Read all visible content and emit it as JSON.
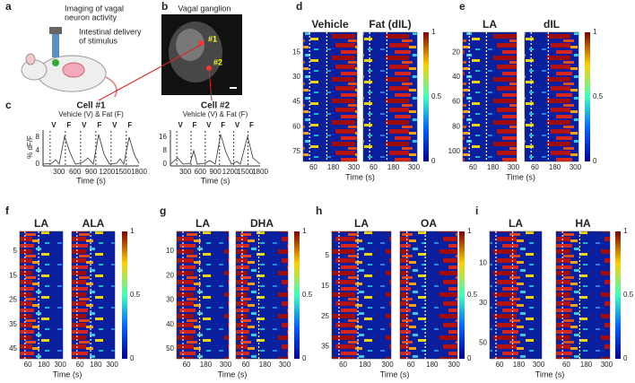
{
  "panels": {
    "a": {
      "label": "a",
      "title_lines": [
        "Imaging of vagal",
        "neuron activity"
      ],
      "stimulus_lines": [
        "Intestinal delivery",
        "of stimulus"
      ]
    },
    "b": {
      "label": "b",
      "title": "Vagal ganglion",
      "cells": [
        "#1",
        "#2"
      ]
    },
    "c": {
      "label": "c",
      "ylabel": "% dF/F",
      "xlabel": "Time (s)",
      "cells": [
        {
          "title": "Cell #1",
          "subtitle": "Vehicle (V) & Fat (F)",
          "markers": [
            "V",
            "F",
            "V",
            "F",
            "V",
            "F"
          ],
          "yticks": [
            "0",
            "4",
            "8"
          ],
          "xticks": [
            "300",
            "600",
            "900",
            "1200",
            "1500",
            "1800"
          ]
        },
        {
          "title": "Cell #2",
          "subtitle": "Vehicle (V) & Fat (F)",
          "markers": [
            "V",
            "F",
            "V",
            "F",
            "V",
            "F"
          ],
          "yticks": [
            "0",
            "8",
            "16"
          ],
          "xticks": [
            "300",
            "600",
            "900",
            "1200",
            "1500",
            "1800"
          ]
        }
      ]
    },
    "d": {
      "label": "d",
      "conditions": [
        "Vehicle",
        "Fat (dIL)"
      ],
      "yticks": [
        "15",
        "30",
        "45",
        "60",
        "75"
      ],
      "xticks": [
        "60",
        "180",
        "300"
      ],
      "colorbar": [
        "1",
        "0.5",
        "0"
      ],
      "xlabel": "Time (s)"
    },
    "e": {
      "label": "e",
      "conditions": [
        "LA",
        "dIL"
      ],
      "yticks": [
        "20",
        "40",
        "60",
        "80",
        "100"
      ],
      "xticks": [
        "60",
        "180",
        "300"
      ],
      "colorbar": [
        "1",
        "0.5",
        "0"
      ],
      "xlabel": "Time (s)"
    },
    "f": {
      "label": "f",
      "conditions": [
        "LA",
        "ALA"
      ],
      "yticks": [
        "5",
        "15",
        "25",
        "35",
        "45"
      ],
      "xticks": [
        "60",
        "180",
        "300"
      ],
      "colorbar": [
        "1",
        "0.5",
        "0"
      ],
      "xlabel": "Time (s)"
    },
    "g": {
      "label": "g",
      "conditions": [
        "LA",
        "DHA"
      ],
      "yticks": [
        "10",
        "20",
        "30",
        "40",
        "50"
      ],
      "xticks": [
        "60",
        "180",
        "300"
      ],
      "colorbar": [
        "1",
        "0.5",
        "0"
      ],
      "xlabel": "Time (s)"
    },
    "h": {
      "label": "h",
      "conditions": [
        "LA",
        "OA"
      ],
      "yticks": [
        "5",
        "15",
        "25",
        "35"
      ],
      "xticks": [
        "60",
        "180",
        "300"
      ],
      "colorbar": [
        "1",
        "0.5",
        "0"
      ],
      "xlabel": "Time (s)"
    },
    "i": {
      "label": "i",
      "conditions": [
        "LA",
        "HA"
      ],
      "yticks": [
        "10",
        "30",
        "50"
      ],
      "xticks": [
        "60",
        "180",
        "300"
      ],
      "colorbar": [
        "1",
        "0.5",
        "0"
      ],
      "xlabel": "Time (s)"
    }
  }
}
